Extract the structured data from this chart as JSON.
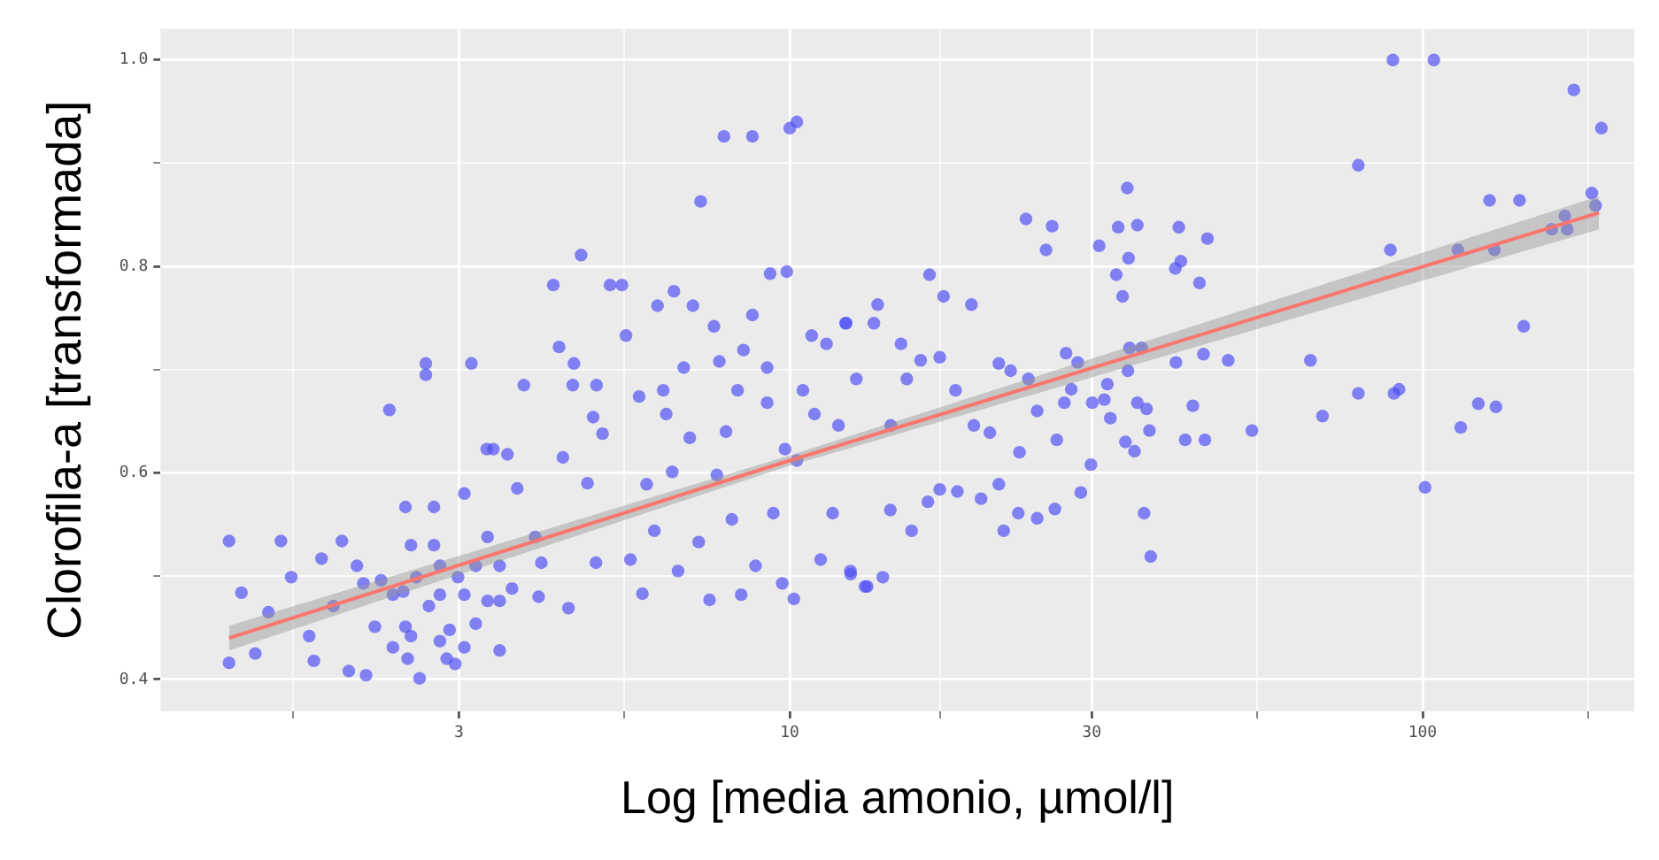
{
  "chart_data": {
    "type": "scatter",
    "xlabel": "Log [media amonio, µmol/l]",
    "ylabel": "Clorofila-a [transformada]",
    "log": "x",
    "grid": true,
    "legend": false,
    "xlim": [
      1.013,
      216
    ],
    "ylim": [
      0.369,
      1.03
    ],
    "xticks": [
      {
        "value": 1.64,
        "label": null
      },
      3,
      {
        "value": 5.48,
        "label": null
      },
      10,
      {
        "value": 17.3,
        "label": null
      },
      30,
      {
        "value": 54.8,
        "label": null
      },
      100,
      {
        "value": 182.6,
        "label": null
      }
    ],
    "yticks": [
      0.4,
      {
        "value": 0.5,
        "label": null
      },
      0.6,
      {
        "value": 0.7,
        "label": null
      },
      0.8,
      {
        "value": 0.9,
        "label": null
      },
      {
        "value": 1,
        "label": "1.0"
      }
    ],
    "series": [
      {
        "marker": "circle",
        "color": "#5050f5",
        "x": [
          1.3,
          1.3,
          1.36,
          1.43,
          1.57,
          1.63,
          1.82,
          1.77,
          1.96,
          2.01,
          2.14,
          2.07,
          2.33,
          2.26,
          2.47,
          2.45,
          2.52,
          2.6,
          2.66,
          2.66,
          2.74,
          2.8,
          2.87,
          2.96,
          2.99,
          3.14,
          3.06,
          3.19,
          3.32,
          3.4,
          3.58,
          3.48,
          3.64,
          3.8,
          3.71,
          4.01,
          4.05,
          4.23,
          4.32,
          4.38,
          4.47,
          4.56,
          4.54,
          4.68,
          4.79,
          4.94,
          4.95,
          4.89,
          5.06,
          5.2,
          5.43,
          5.51,
          5.6,
          5.85,
          5.78,
          5.94,
          6.18,
          6.31,
          6.56,
          6.66,
          6.8,
          7.03,
          7.23,
          7.18,
          7.47,
          7.59,
          7.67,
          7.87,
          7.93,
          8.1,
          8.38,
          8.45,
          8.73,
          8.73,
          8.83,
          9.21,
          9.31,
          9.42,
          9.73,
          9.83,
          10.0,
          10.26,
          9.89,
          10.15,
          10.49,
          10.83,
          11.19,
          11.69,
          11.94,
          12.28,
          12.47,
          12.74,
          13.15,
          12.25,
          12.48,
          13.25,
          13.77,
          13.58,
          14.03,
          14.44,
          14.99,
          15.31,
          14.42,
          15.58,
          16.1,
          16.63,
          16.53,
          17.26,
          17.5,
          17.26,
          18.28,
          18.4,
          19.37,
          19.54,
          20.06,
          20.71,
          21.4,
          21.4,
          21.78,
          22.34,
          23.07,
          22.97,
          23.62,
          23.83,
          24.6,
          24.6,
          25.41,
          25.98,
          26.24,
          26.42,
          27.33,
          27.16,
          27.85,
          28.51,
          28.84,
          29.92,
          30.06,
          30.83,
          31.41,
          31.76,
          32.11,
          32.81,
          33.04,
          33.57,
          33.92,
          34.15,
          34.31,
          34.43,
          34.23,
          35.06,
          35.42,
          35.42,
          35.98,
          36.3,
          36.63,
          37.02,
          37.19,
          40.76,
          40.67,
          41.19,
          41.5,
          42.16,
          43.35,
          44.41,
          45.06,
          45.72,
          45.29,
          49.3,
          53.74,
          66.5,
          69.48,
          79.16,
          79.16,
          88.96,
          89.78,
          90.13,
          91.81,
          100.9,
          104.2,
          113.7,
          114.9,
          122.5,
          127.6,
          129.9,
          130.6,
          142.3,
          144.5,
          160.0,
          167.8,
          169.3,
          173.4,
          185.1,
          187.7,
          191.7,
          2.36,
          2.47,
          2.57,
          2.69,
          2.8,
          2.9,
          3.06,
          3.19,
          3.33,
          3.48,
          2.21,
          2.36,
          2.49,
          2.8,
          3.06,
          3.48,
          1.9,
          1.74,
          1.5,
          2.52,
          2.74,
          2.12,
          3.33,
          3.96,
          8.27,
          9.21,
          10.94,
          6.95,
          6.38,
          7.74,
          10.26,
          11.43,
          6.11,
          6.52
        ],
        "values": [
          0.534,
          0.416,
          0.484,
          0.425,
          0.534,
          0.499,
          0.517,
          0.418,
          0.534,
          0.408,
          0.404,
          0.51,
          0.661,
          0.496,
          0.567,
          0.485,
          0.442,
          0.401,
          0.706,
          0.695,
          0.567,
          0.482,
          0.42,
          0.415,
          0.499,
          0.706,
          0.58,
          0.454,
          0.623,
          0.623,
          0.618,
          0.476,
          0.488,
          0.685,
          0.585,
          0.48,
          0.513,
          0.782,
          0.722,
          0.615,
          0.469,
          0.706,
          0.685,
          0.811,
          0.59,
          0.513,
          0.685,
          0.654,
          0.638,
          0.782,
          0.782,
          0.733,
          0.516,
          0.483,
          0.674,
          0.589,
          0.762,
          0.68,
          0.776,
          0.505,
          0.702,
          0.762,
          0.863,
          0.533,
          0.477,
          0.742,
          0.598,
          0.926,
          0.64,
          0.555,
          0.482,
          0.719,
          0.926,
          0.753,
          0.51,
          0.702,
          0.793,
          0.561,
          0.493,
          0.623,
          0.934,
          0.94,
          0.795,
          0.478,
          0.68,
          0.733,
          0.516,
          0.561,
          0.646,
          0.745,
          0.505,
          0.691,
          0.49,
          0.745,
          0.502,
          0.49,
          0.763,
          0.745,
          0.499,
          0.646,
          0.725,
          0.691,
          0.564,
          0.544,
          0.709,
          0.792,
          0.572,
          0.712,
          0.771,
          0.584,
          0.68,
          0.582,
          0.763,
          0.646,
          0.575,
          0.639,
          0.706,
          0.589,
          0.544,
          0.699,
          0.62,
          0.561,
          0.846,
          0.691,
          0.66,
          0.556,
          0.816,
          0.839,
          0.565,
          0.632,
          0.716,
          0.668,
          0.681,
          0.707,
          0.581,
          0.608,
          0.668,
          0.82,
          0.671,
          0.686,
          0.653,
          0.792,
          0.838,
          0.771,
          0.63,
          0.876,
          0.808,
          0.721,
          0.699,
          0.621,
          0.84,
          0.668,
          0.721,
          0.561,
          0.662,
          0.641,
          0.519,
          0.707,
          0.798,
          0.838,
          0.805,
          0.632,
          0.665,
          0.784,
          0.715,
          0.827,
          0.632,
          0.709,
          0.641,
          0.709,
          0.655,
          0.898,
          0.677,
          0.816,
          1.0,
          0.677,
          0.681,
          0.586,
          1.0,
          0.816,
          0.644,
          0.667,
          0.864,
          0.816,
          0.664,
          0.864,
          0.742,
          0.836,
          0.849,
          0.836,
          0.971,
          0.871,
          0.859,
          0.934,
          0.482,
          0.451,
          0.499,
          0.471,
          0.51,
          0.448,
          0.482,
          0.51,
          0.476,
          0.51,
          0.451,
          0.431,
          0.42,
          0.437,
          0.431,
          0.428,
          0.471,
          0.442,
          0.465,
          0.53,
          0.53,
          0.493,
          0.538,
          0.538,
          0.68,
          0.668,
          0.657,
          0.634,
          0.657,
          0.708,
          0.612,
          0.725,
          0.544,
          0.601
        ]
      },
      {
        "type": "line",
        "marker": "none",
        "color": "#f8766d",
        "x": [
          1.3,
          10,
          190
        ],
        "values": [
          0.44,
          0.612,
          0.852
        ],
        "lower": [
          0.428,
          0.607,
          0.836
        ],
        "upper": [
          0.452,
          0.617,
          0.868
        ]
      }
    ]
  }
}
